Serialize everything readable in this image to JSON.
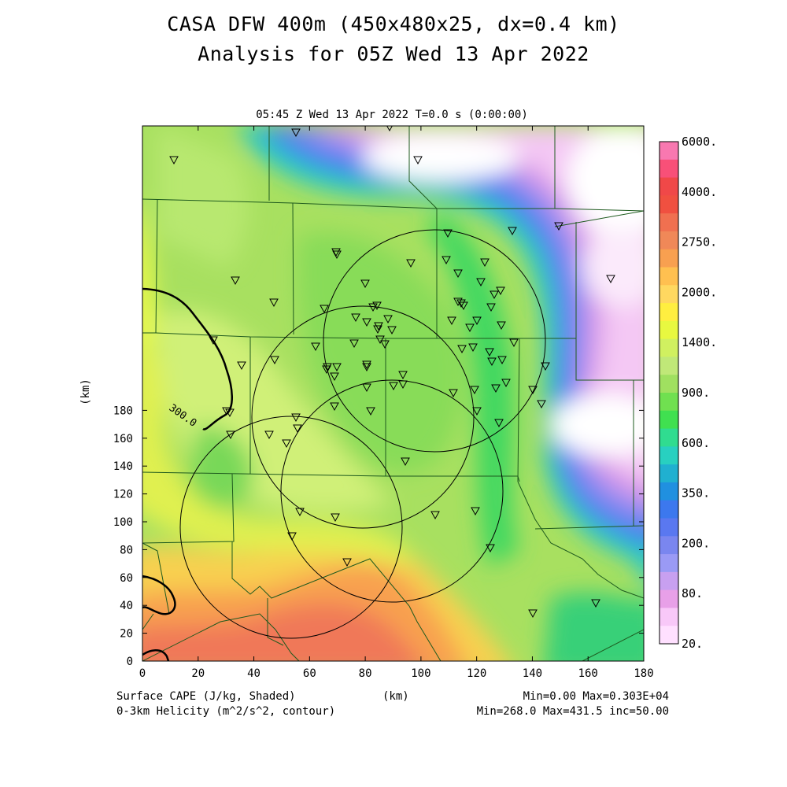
{
  "title_line1": "CASA DFW 400m (450x480x25, dx=0.4 km)",
  "title_line2": "Analysis for 05Z Wed 13 Apr 2022",
  "plot_header": "05:45 Z Wed 13 Apr 2022   T=0.0 s (0:00:00)",
  "x_axis_label": "(km)",
  "y_axis_label": "(km)",
  "x_ticks": [
    "0",
    "20",
    "40",
    "60",
    "80",
    "100",
    "120",
    "140",
    "160",
    "180"
  ],
  "y_ticks": [
    "0",
    "20",
    "40",
    "60",
    "80",
    "100",
    "120",
    "140",
    "160",
    "180"
  ],
  "colorbar_labels": [
    "20.",
    "80.",
    "200.",
    "350.",
    "600.",
    "900.",
    "1400.",
    "2000.",
    "2750.",
    "4000.",
    "6000."
  ],
  "colors": {
    "cape_scale": [
      "#ffe0ff",
      "#f8c8f8",
      "#e8a0e8",
      "#c8a0f0",
      "#9a9af5",
      "#7a86ef",
      "#5a78f0",
      "#3c78ee",
      "#2090e0",
      "#20b0d0",
      "#28d0c0",
      "#30dc90",
      "#40e050",
      "#70e050",
      "#a0e060",
      "#c0e878",
      "#d0f060",
      "#e8f840",
      "#ffee40",
      "#ffd860",
      "#ffc050",
      "#f8a050",
      "#f08858",
      "#f07050",
      "#f05040",
      "#f04848",
      "#f85078",
      "#f878b0"
    ],
    "county_lines": "#1e5a1e",
    "helicity_contour": "#000000"
  },
  "map": {
    "shaded_field": "Surface CAPE (J/kg)",
    "contour_field": "0-3km Helicity (m^2/s^2)",
    "contour_label": "300.0",
    "station_marker": "inverted-triangle",
    "radar_rings": 4
  },
  "footer": {
    "left1": "Surface CAPE (J/kg, Shaded)",
    "left2": "0-3km Helicity (m^2/s^2, contour)",
    "center": "(km)",
    "right1": "Min=0.00 Max=0.303E+04",
    "right2": "Min=268.0 Max=431.5 inc=50.00"
  }
}
